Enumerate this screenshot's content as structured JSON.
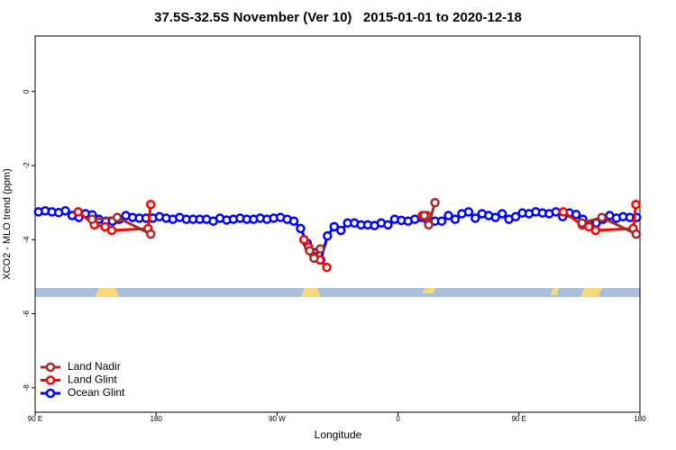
{
  "chart_data": {
    "type": "line",
    "title": "37.5S-32.5S November (Ver 10)   2015-01-01 to 2020-12-18",
    "xlabel": "Longitude",
    "ylabel": "XCO2 - MLO trend (ppm)",
    "xlim": [
      90,
      540
    ],
    "ylim": [
      -8.66,
      1.5
    ],
    "xticks": [
      {
        "value": 90,
        "label": "90 E"
      },
      180,
      {
        "value": 270,
        "label": "90 W"
      },
      {
        "value": 360,
        "label": "0"
      },
      {
        "value": 450,
        "label": "90 E"
      },
      {
        "value": 540,
        "label": "180"
      }
    ],
    "yticks": [
      0,
      -2,
      -4,
      -6,
      -8
    ],
    "legend": "bottom-left",
    "series": [
      {
        "name": "Ocean Glint",
        "color": "#0000ff",
        "x": [
          92.5,
          97.5,
          102.5,
          107.5,
          112.5,
          117.5,
          122.5,
          127.5,
          132.5,
          137.5,
          142.5,
          147.5,
          152.5,
          157.5,
          162.5,
          167.5,
          172.5,
          177.5,
          182.5,
          187.5,
          192.5,
          197.5,
          202.5,
          207.5,
          212.5,
          217.5,
          222.5,
          227.5,
          232.5,
          237.5,
          242.5,
          247.5,
          252.5,
          257.5,
          262.5,
          267.5,
          272.5,
          277.5,
          282.5,
          287.5,
          292.5,
          297.5,
          302.5,
          307.5,
          312.5,
          317.5,
          322.5,
          327.5,
          332.5,
          337.5,
          342.5,
          347.5,
          352.5,
          357.5,
          362.5,
          367.5,
          372.5,
          377.5,
          382.5,
          387.5,
          392.5,
          397.5,
          402.5,
          407.5,
          412.5,
          417.5,
          422.5,
          427.5,
          432.5,
          437.5,
          442.5,
          447.5,
          452.5,
          457.5,
          462.5,
          467.5,
          472.5,
          477.5,
          482.5,
          487.5,
          492.5,
          497.5,
          502.5,
          507.5,
          512.5,
          517.5,
          522.5,
          527.5,
          532.5,
          537.5
        ],
        "values": [
          -3.25,
          -3.22,
          -3.25,
          -3.27,
          -3.22,
          -3.35,
          -3.4,
          -3.3,
          -3.33,
          -3.45,
          -3.5,
          -3.5,
          -3.45,
          -3.35,
          -3.4,
          -3.42,
          -3.42,
          -3.42,
          -3.38,
          -3.42,
          -3.45,
          -3.4,
          -3.45,
          -3.45,
          -3.45,
          -3.45,
          -3.5,
          -3.42,
          -3.47,
          -3.45,
          -3.42,
          -3.45,
          -3.45,
          -3.42,
          -3.45,
          -3.42,
          -3.4,
          -3.45,
          -3.5,
          -3.7,
          -4.1,
          -4.35,
          -4.55,
          -3.9,
          -3.65,
          -3.75,
          -3.55,
          -3.55,
          -3.6,
          -3.6,
          -3.62,
          -3.55,
          -3.6,
          -3.45,
          -3.48,
          -3.5,
          -3.45,
          -3.4,
          -3.5,
          -3.5,
          -3.5,
          -3.35,
          -3.45,
          -3.3,
          -3.25,
          -3.42,
          -3.3,
          -3.35,
          -3.4,
          -3.3,
          -3.45,
          -3.38,
          -3.28,
          -3.3,
          -3.25,
          -3.28,
          -3.3,
          -3.25,
          -3.38,
          -3.28,
          -3.32,
          -3.45,
          -3.6,
          -3.55,
          -3.45,
          -3.35,
          -3.42,
          -3.38,
          -3.4,
          -3.4
        ]
      },
      {
        "name": "Land Glint",
        "color": "#ff0000",
        "x": [
          122,
          134,
          142,
          147,
          174,
          176,
          null,
          290,
          293.5,
          297.5,
          302,
          307,
          null,
          378,
          381.5,
          null,
          483,
          497,
          502,
          507,
          535,
          537
        ],
        "values": [
          -3.25,
          -3.6,
          -3.65,
          -3.75,
          -3.7,
          -3.05,
          null,
          -4.0,
          -4.2,
          -4.45,
          -4.55,
          -4.75,
          null,
          -3.35,
          -3.35,
          null,
          -3.25,
          -3.6,
          -3.65,
          -3.75,
          -3.7,
          -3.05
        ]
      },
      {
        "name": "Land Nadir",
        "color": "#a52a2a",
        "x": [
          132.3,
          151.1,
          176,
          null,
          294.2,
          297.5,
          302.2,
          null,
          379.5,
          382.8,
          387.5,
          null,
          496.9,
          511.7,
          537.2
        ],
        "values": [
          -3.45,
          -3.4,
          -3.85,
          null,
          -4.3,
          -4.5,
          -4.25,
          null,
          -3.35,
          -3.6,
          -3.0,
          null,
          -3.55,
          -3.4,
          -3.85
        ]
      }
    ]
  }
}
